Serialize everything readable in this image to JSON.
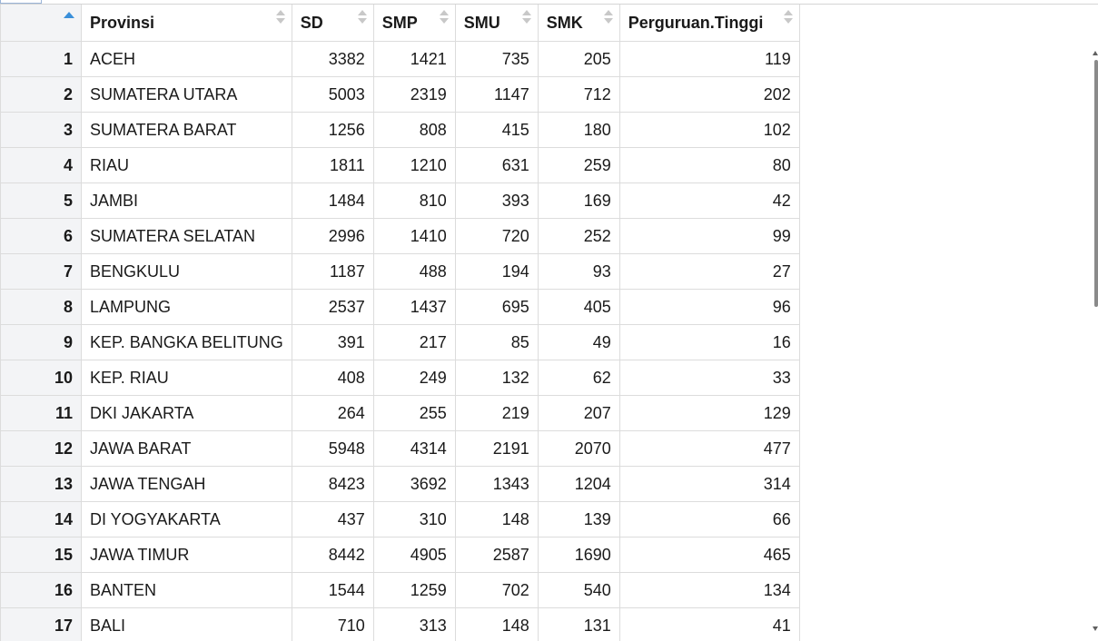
{
  "table": {
    "columns": [
      "",
      "Provinsi",
      "SD",
      "SMP",
      "SMU",
      "SMK",
      "Perguruan.Tinggi"
    ],
    "sorted_column": 0,
    "sort_direction": "ascending",
    "rows": [
      {
        "n": "1",
        "prov": "ACEH",
        "sd": "3382",
        "smp": "1421",
        "smu": "735",
        "smk": "205",
        "pt": "119"
      },
      {
        "n": "2",
        "prov": "SUMATERA UTARA",
        "sd": "5003",
        "smp": "2319",
        "smu": "1147",
        "smk": "712",
        "pt": "202"
      },
      {
        "n": "3",
        "prov": "SUMATERA BARAT",
        "sd": "1256",
        "smp": "808",
        "smu": "415",
        "smk": "180",
        "pt": "102"
      },
      {
        "n": "4",
        "prov": "RIAU",
        "sd": "1811",
        "smp": "1210",
        "smu": "631",
        "smk": "259",
        "pt": "80"
      },
      {
        "n": "5",
        "prov": "JAMBI",
        "sd": "1484",
        "smp": "810",
        "smu": "393",
        "smk": "169",
        "pt": "42"
      },
      {
        "n": "6",
        "prov": "SUMATERA SELATAN",
        "sd": "2996",
        "smp": "1410",
        "smu": "720",
        "smk": "252",
        "pt": "99"
      },
      {
        "n": "7",
        "prov": "BENGKULU",
        "sd": "1187",
        "smp": "488",
        "smu": "194",
        "smk": "93",
        "pt": "27"
      },
      {
        "n": "8",
        "prov": "LAMPUNG",
        "sd": "2537",
        "smp": "1437",
        "smu": "695",
        "smk": "405",
        "pt": "96"
      },
      {
        "n": "9",
        "prov": "KEP. BANGKA BELITUNG",
        "sd": "391",
        "smp": "217",
        "smu": "85",
        "smk": "49",
        "pt": "16"
      },
      {
        "n": "10",
        "prov": "KEP. RIAU",
        "sd": "408",
        "smp": "249",
        "smu": "132",
        "smk": "62",
        "pt": "33"
      },
      {
        "n": "11",
        "prov": "DKI JAKARTA",
        "sd": "264",
        "smp": "255",
        "smu": "219",
        "smk": "207",
        "pt": "129"
      },
      {
        "n": "12",
        "prov": "JAWA BARAT",
        "sd": "5948",
        "smp": "4314",
        "smu": "2191",
        "smk": "2070",
        "pt": "477"
      },
      {
        "n": "13",
        "prov": "JAWA TENGAH",
        "sd": "8423",
        "smp": "3692",
        "smu": "1343",
        "smk": "1204",
        "pt": "314"
      },
      {
        "n": "14",
        "prov": "DI YOGYAKARTA",
        "sd": "437",
        "smp": "310",
        "smu": "148",
        "smk": "139",
        "pt": "66"
      },
      {
        "n": "15",
        "prov": "JAWA TIMUR",
        "sd": "8442",
        "smp": "4905",
        "smu": "2587",
        "smk": "1690",
        "pt": "465"
      },
      {
        "n": "16",
        "prov": "BANTEN",
        "sd": "1544",
        "smp": "1259",
        "smu": "702",
        "smk": "540",
        "pt": "134"
      },
      {
        "n": "17",
        "prov": "BALI",
        "sd": "710",
        "smp": "313",
        "smu": "148",
        "smk": "131",
        "pt": "41"
      }
    ]
  },
  "colors": {
    "sort_active": "#3a8fd9",
    "sort_inactive": "#c8c8c8",
    "grid_line": "#dcdcdc",
    "rownum_background": "#f3f4f6"
  },
  "icons": {
    "sort_active": "sort-ascending-icon",
    "sort_inactive": "sort-both-icon"
  }
}
